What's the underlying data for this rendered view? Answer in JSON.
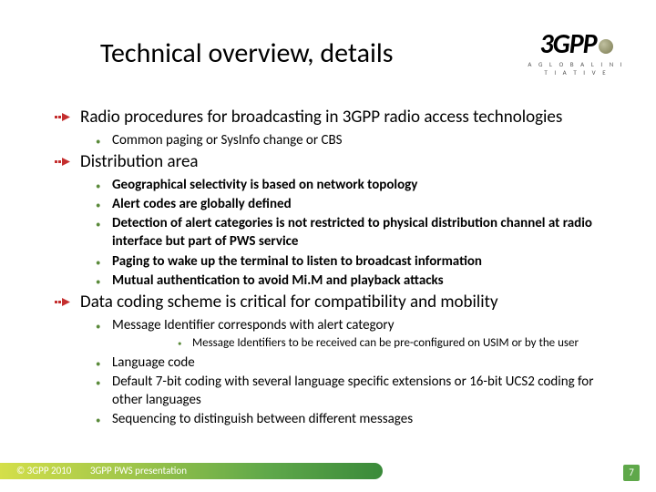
{
  "logo": {
    "text1": "3G",
    "text2": "PP",
    "tagline": "A  G L O B A L  I N I T I A T I V E"
  },
  "title": "Technical overview, details",
  "sections": [
    {
      "text": "Radio procedures for broadcasting in 3GPP radio access technologies",
      "children": [
        {
          "text": "Common paging or SysInfo change or CBS",
          "bold": false
        }
      ]
    },
    {
      "text": "Distribution area",
      "children": [
        {
          "text": "Geographical selectivity is based on network topology",
          "bold": true
        },
        {
          "text": "Alert codes are globally defined",
          "bold": true
        },
        {
          "text": "Detection of alert categories is not restricted to physical distribution channel at radio interface but part of PWS service",
          "bold": true
        },
        {
          "text": "Paging to wake up the terminal to listen to broadcast information",
          "bold": true
        },
        {
          "text": "Mutual authentication to avoid Mi.M and playback attacks",
          "bold": true
        }
      ]
    },
    {
      "text": "Data coding scheme is critical for compatibility  and mobility",
      "children": [
        {
          "text": "Message Identifier corresponds with alert category",
          "bold": false,
          "children": [
            {
              "text": "Message Identifiers to be received can be pre-configured on USIM or by the user"
            }
          ]
        },
        {
          "text": "Language code",
          "bold": false
        },
        {
          "text": "Default 7-bit coding with several language specific extensions or 16-bit UCS2 coding for other languages",
          "bold": false
        },
        {
          "text": "Sequencing to distinguish between different messages",
          "bold": false
        }
      ]
    }
  ],
  "footer": {
    "copyright": "© 3GPP 2010",
    "presentation": "3GPP PWS presentation",
    "page": "7"
  },
  "colors": {
    "bullet_red": "#c42e2e",
    "bullet_green": "#5a8a3a",
    "bar_gradient_start": "#d4df4a",
    "bar_gradient_end": "#3a8a3a",
    "page_bg": "#5fa84a"
  }
}
